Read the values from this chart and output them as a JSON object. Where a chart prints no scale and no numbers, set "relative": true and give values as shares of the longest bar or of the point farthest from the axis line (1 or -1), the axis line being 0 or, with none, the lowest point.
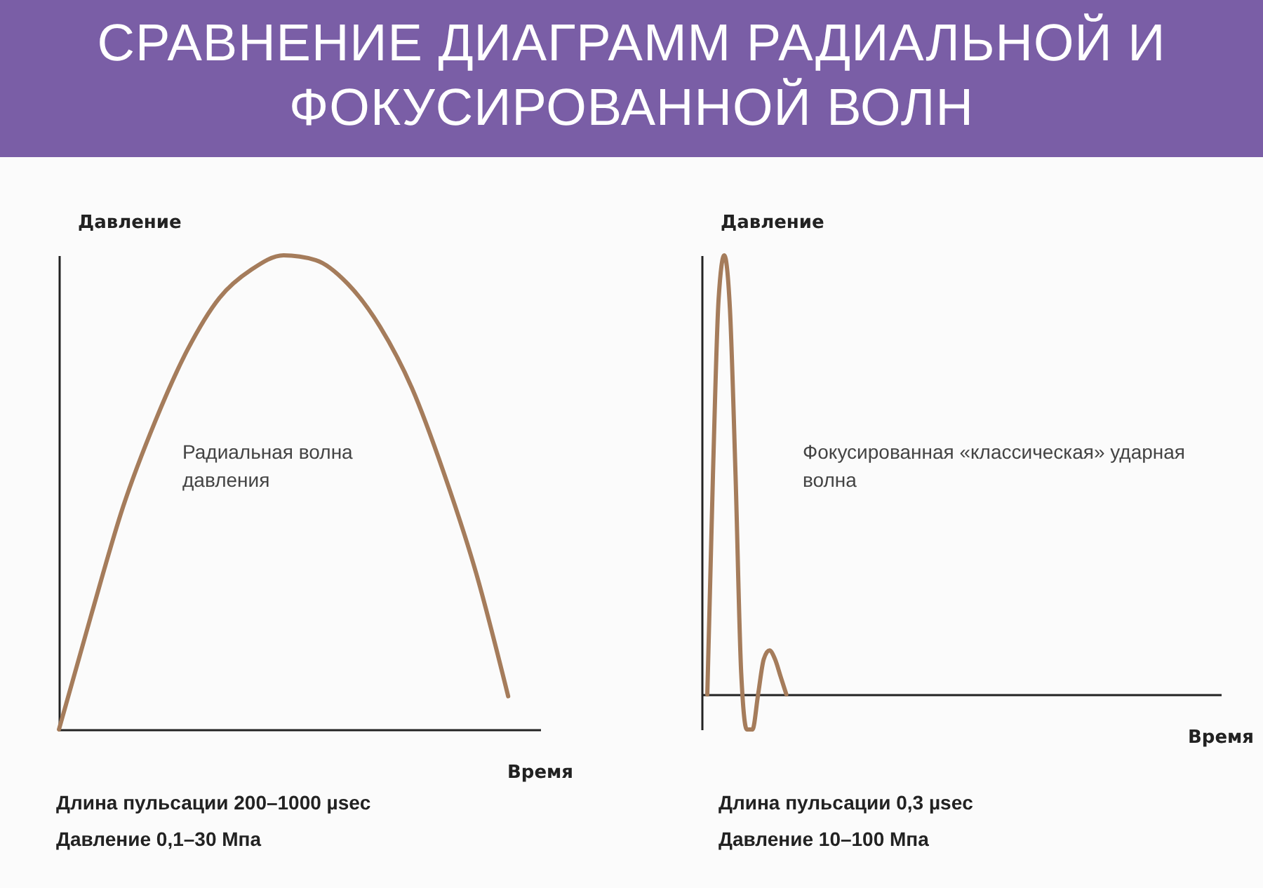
{
  "chart_data": [
    {
      "type": "line",
      "title": "СРАВНЕНИЕ ДИАГРАММ РАДИАЛЬНОЙ И ФОКУСИРОВАННОЙ ВОЛН",
      "xlabel": "Время",
      "ylabel": "Давление",
      "relative": true,
      "line_style": "solid",
      "categories": [
        null,
        null,
        null,
        null,
        null,
        null,
        null,
        null,
        null,
        null,
        null,
        null,
        null,
        null,
        null,
        null
      ],
      "series": [
        {
          "name": "Радиальная волна давления",
          "color": "#a57c5b",
          "values": [
            0,
            0.24,
            0.47,
            0.65,
            0.8,
            0.91,
            0.97,
            1,
            0.99,
            0.94,
            0.85,
            0.72,
            0.54,
            0.33,
            0.07,
            null
          ]
        }
      ],
      "annotations": [
        "Длина пульсации 200–1000 µsec",
        "Давление 0,1–30 Мпа"
      ]
    },
    {
      "type": "line",
      "xlabel": "Время",
      "ylabel": "Давление",
      "relative": true,
      "line_style": "solid",
      "categories": [
        null,
        null,
        null,
        null,
        null,
        null,
        null,
        null,
        null,
        null,
        null,
        null,
        null,
        null,
        null,
        null,
        null,
        null,
        null,
        null,
        null,
        null,
        null,
        null,
        null,
        null,
        null,
        null,
        null,
        null,
        null,
        null,
        null,
        null,
        null,
        null,
        null,
        null,
        null,
        null,
        null,
        null,
        null,
        null,
        null,
        null,
        null,
        null,
        null,
        null,
        null,
        null,
        null,
        null,
        null,
        null,
        null,
        null,
        null,
        null,
        null,
        null,
        null,
        null,
        null,
        null,
        null,
        null,
        null,
        null,
        null,
        null,
        null,
        null,
        null,
        null,
        null,
        null,
        null,
        null,
        null,
        null,
        null,
        null,
        null,
        null,
        null,
        null,
        null,
        null,
        null,
        null,
        null
      ],
      "series": [
        {
          "name": "Фокусированная «классическая» ударная волна",
          "color": "#a57c5b",
          "values": [
            null,
            0,
            0.5,
            0.9,
            1,
            0.88,
            0.5,
            0.05,
            -0.08,
            -0.08,
            0,
            0.08,
            0.1,
            0.08,
            0.04,
            0,
            null,
            null,
            null,
            null,
            null,
            null,
            null,
            null,
            null,
            null,
            null,
            null,
            null,
            null,
            null,
            null,
            null,
            null,
            null,
            null,
            null,
            null,
            null,
            null,
            null,
            null,
            null,
            null,
            null,
            null,
            null,
            null,
            null,
            null,
            null,
            null,
            null,
            null,
            null,
            null,
            null,
            null,
            null,
            null,
            null,
            null,
            null,
            null,
            null,
            null,
            null,
            null,
            null,
            null,
            null,
            null,
            null,
            null,
            null,
            null,
            null,
            null,
            null,
            null,
            null,
            null,
            null,
            null,
            null,
            null,
            null,
            null,
            null,
            null,
            null,
            null,
            null
          ]
        }
      ],
      "annotations": [
        "Длина пульсации 0,3 µsec",
        "Давление 10–100 Мпа"
      ]
    }
  ]
}
